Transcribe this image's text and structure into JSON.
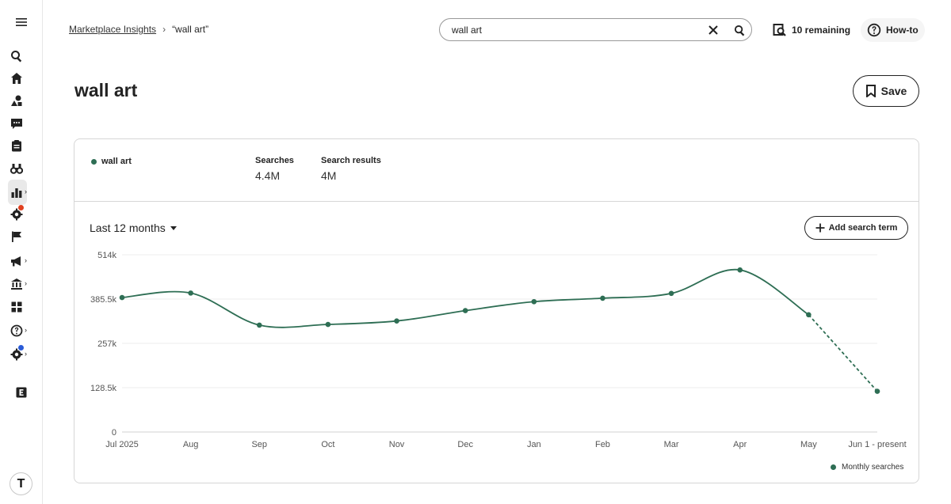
{
  "sidebar": {
    "items": [
      {
        "icon": "menu-icon"
      },
      {
        "icon": "search-icon"
      },
      {
        "icon": "home-icon"
      },
      {
        "icon": "shapes-icon"
      },
      {
        "icon": "message-icon"
      },
      {
        "icon": "clipboard-icon"
      },
      {
        "icon": "binoculars-icon"
      },
      {
        "icon": "bar-chart-icon",
        "active": true,
        "chevron": true
      },
      {
        "icon": "gear-icon",
        "badge_color": "#e0401f"
      },
      {
        "icon": "flag-icon"
      },
      {
        "icon": "megaphone-icon",
        "chevron": true
      },
      {
        "icon": "bank-icon",
        "chevron": true
      },
      {
        "icon": "grid-icon"
      },
      {
        "icon": "help-icon",
        "chevron": true
      },
      {
        "icon": "gear-icon",
        "badge_color": "#2a5bd7",
        "chevron": true
      },
      {
        "icon": "etsy-icon"
      }
    ],
    "avatar_letter": "T"
  },
  "breadcrumb": {
    "parent": "Marketplace Insights",
    "separator": "›",
    "current": "“wall art”"
  },
  "search": {
    "value": "wall art",
    "clear_icon": "close-icon",
    "submit_icon": "search-icon"
  },
  "header": {
    "remaining_label": "10 remaining",
    "howto_label": "How-to",
    "page_title": "wall art",
    "save_label": "Save"
  },
  "summary": {
    "term": "wall art",
    "searches_label": "Searches",
    "searches_value": "4.4M",
    "results_label": "Search results",
    "results_value": "4M"
  },
  "controls": {
    "range_label": "Last 12 months",
    "add_term_label": "Add search term"
  },
  "colors": {
    "series": "#2e6e54",
    "accent_red": "#e0401f",
    "accent_blue": "#2a5bd7"
  },
  "chart_data": {
    "type": "line",
    "categories": [
      "Jul 2025",
      "Aug",
      "Sep",
      "Oct",
      "Nov",
      "Dec",
      "Jan",
      "Feb",
      "Mar",
      "Apr",
      "May",
      "Jun 1 - present"
    ],
    "series": [
      {
        "name": "Monthly searches",
        "values": [
          390000,
          403000,
          310000,
          312000,
          322000,
          352000,
          378000,
          388000,
          402000,
          470000,
          340000,
          118000
        ],
        "dashed_from_index": 10
      }
    ],
    "yticks": [
      "0",
      "128.5k",
      "257k",
      "385.5k",
      "514k"
    ],
    "ylim": [
      0,
      514000
    ],
    "grid": true,
    "legend_position": "bottom-right",
    "legend_label": "Monthly searches"
  }
}
